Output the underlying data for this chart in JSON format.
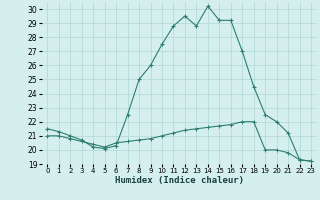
{
  "xlabel": "Humidex (Indice chaleur)",
  "x_ticks": [
    0,
    1,
    2,
    3,
    4,
    5,
    6,
    7,
    8,
    9,
    10,
    11,
    12,
    13,
    14,
    15,
    16,
    17,
    18,
    19,
    20,
    21,
    22,
    23
  ],
  "ylim": [
    19,
    30.5
  ],
  "yticks": [
    19,
    20,
    21,
    22,
    23,
    24,
    25,
    26,
    27,
    28,
    29,
    30
  ],
  "xlim": [
    -0.5,
    23.5
  ],
  "line1_x": [
    0,
    1,
    2,
    3,
    4,
    5,
    6,
    7,
    8,
    9,
    10,
    11,
    12,
    13,
    14,
    15,
    16,
    17,
    18,
    19,
    20,
    21,
    22,
    23
  ],
  "line1_y": [
    21.5,
    21.3,
    21.0,
    20.7,
    20.2,
    20.1,
    20.3,
    22.5,
    25.0,
    26.0,
    27.5,
    28.8,
    29.5,
    28.8,
    30.2,
    29.2,
    29.2,
    27.0,
    24.5,
    22.5,
    22.0,
    21.2,
    19.3,
    19.2
  ],
  "line2_x": [
    0,
    1,
    2,
    3,
    4,
    5,
    6,
    7,
    8,
    9,
    10,
    11,
    12,
    13,
    14,
    15,
    16,
    17,
    18,
    19,
    20,
    21,
    22,
    23
  ],
  "line2_y": [
    21.0,
    21.0,
    20.8,
    20.6,
    20.4,
    20.2,
    20.5,
    20.6,
    20.7,
    20.8,
    21.0,
    21.2,
    21.4,
    21.5,
    21.6,
    21.7,
    21.8,
    22.0,
    22.0,
    20.0,
    20.0,
    19.8,
    19.3,
    19.2
  ],
  "line_color": "#2e7d72",
  "bg_color": "#d4efed",
  "grid_color": "#aed8d4",
  "marker": "+"
}
